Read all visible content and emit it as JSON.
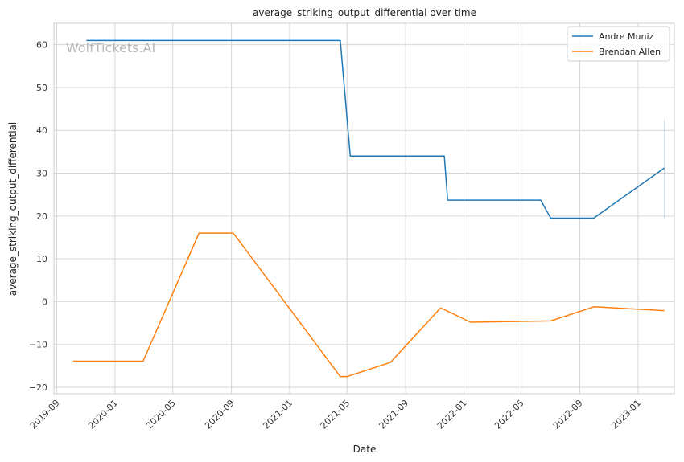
{
  "watermark": "WolfTickets.AI",
  "chart_data": {
    "type": "line",
    "title": "average_striking_output_differential over time",
    "xlabel": "Date",
    "ylabel": "average_striking_output_differential",
    "x_ticks": [
      "2019-09",
      "2020-01",
      "2020-05",
      "2020-09",
      "2021-01",
      "2021-05",
      "2021-09",
      "2022-01",
      "2022-05",
      "2022-09",
      "2023-01"
    ],
    "y_ticks": [
      60,
      50,
      40,
      30,
      20,
      10,
      0,
      -10,
      -20
    ],
    "xlim": [
      "2019-08-26",
      "2023-03-18"
    ],
    "ylim": [
      -21.5,
      65
    ],
    "grid": true,
    "legend_position": "top-right",
    "series": [
      {
        "name": "Andre Muniz",
        "color": "#1f77b4",
        "points": [
          [
            "2019-11-02",
            61
          ],
          [
            "2021-04-17",
            61
          ],
          [
            "2021-05-08",
            34
          ],
          [
            "2021-11-21",
            34
          ],
          [
            "2021-11-28",
            23.7
          ],
          [
            "2022-06-11",
            23.7
          ],
          [
            "2022-07-02",
            19.5
          ],
          [
            "2022-09-30",
            19.5
          ],
          [
            "2023-02-25",
            31.2
          ]
        ],
        "error_bar": {
          "x": "2023-02-25",
          "low": 19.5,
          "high": 42.5
        }
      },
      {
        "name": "Brendan Allen",
        "color": "#ff7f0e",
        "points": [
          [
            "2019-10-05",
            -13.9
          ],
          [
            "2020-02-29",
            -13.9
          ],
          [
            "2020-06-25",
            16
          ],
          [
            "2020-09-05",
            16
          ],
          [
            "2020-11-21",
            4.5
          ],
          [
            "2021-04-17",
            -17.5
          ],
          [
            "2021-05-01",
            -17.5
          ],
          [
            "2021-07-31",
            -14.2
          ],
          [
            "2021-11-13",
            -1.5
          ],
          [
            "2021-11-20",
            -1.8
          ],
          [
            "2022-01-15",
            -4.8
          ],
          [
            "2022-07-02",
            -4.5
          ],
          [
            "2022-10-01",
            -1.2
          ],
          [
            "2023-02-25",
            -2.1
          ]
        ]
      }
    ]
  }
}
